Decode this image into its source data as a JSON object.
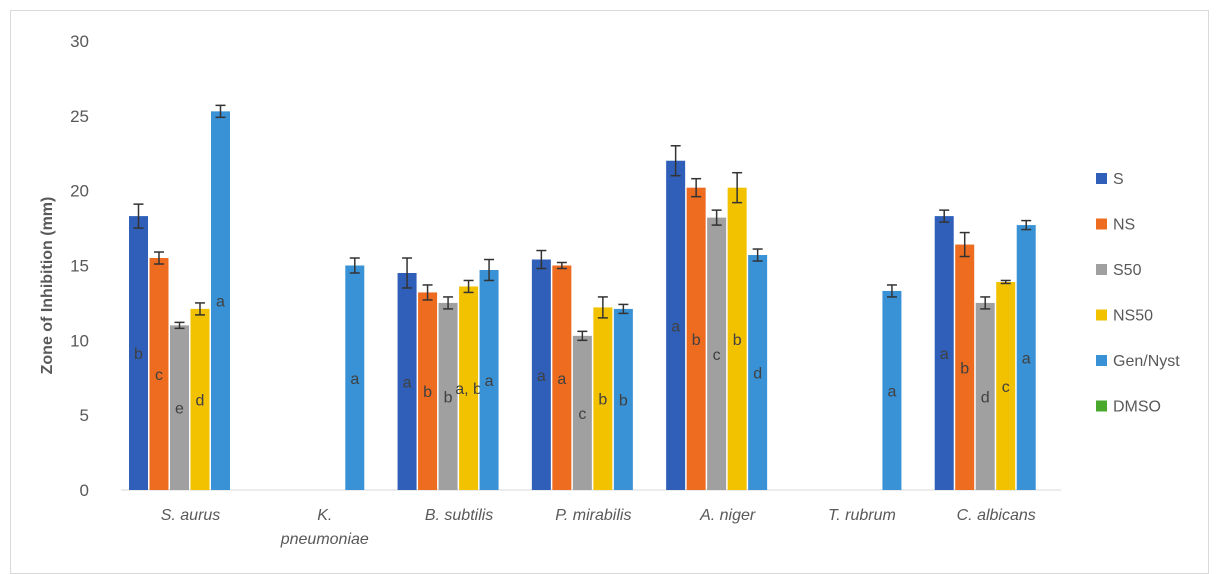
{
  "chart_data": {
    "type": "bar",
    "ylabel": "Zone of Inhibition (mm)",
    "xlabel": "",
    "ylim": [
      0,
      30
    ],
    "yticks": [
      0,
      5,
      10,
      15,
      20,
      25,
      30
    ],
    "grid": false,
    "legend_position": "right",
    "categories": [
      [
        "S. aurus"
      ],
      [
        "K.",
        "pneumoniae"
      ],
      [
        "B. subtilis"
      ],
      [
        "P. mirabilis"
      ],
      [
        "A. niger"
      ],
      [
        "T. rubrum"
      ],
      [
        "C. albicans"
      ]
    ],
    "series": [
      {
        "name": "S",
        "color": "#2f5fb8",
        "values": [
          18.3,
          null,
          14.5,
          15.4,
          22.0,
          null,
          18.3
        ],
        "errors": [
          0.8,
          null,
          1.0,
          0.6,
          1.0,
          null,
          0.4
        ],
        "letters": [
          "b",
          "",
          "a",
          "a",
          "a",
          "",
          "a"
        ]
      },
      {
        "name": "NS",
        "color": "#ed6c1f",
        "values": [
          15.5,
          null,
          13.2,
          15.0,
          20.2,
          null,
          16.4
        ],
        "errors": [
          0.4,
          null,
          0.5,
          0.2,
          0.6,
          null,
          0.8
        ],
        "letters": [
          "c",
          "",
          "b",
          "a",
          "b",
          "",
          "b"
        ]
      },
      {
        "name": "S50",
        "color": "#a0a0a0",
        "values": [
          11.0,
          null,
          12.5,
          10.3,
          18.2,
          null,
          12.5
        ],
        "errors": [
          0.2,
          null,
          0.4,
          0.3,
          0.5,
          null,
          0.4
        ],
        "letters": [
          "e",
          "",
          "b",
          "c",
          "c",
          "",
          "d"
        ]
      },
      {
        "name": "NS50",
        "color": "#f2c200",
        "values": [
          12.1,
          null,
          13.6,
          12.2,
          20.2,
          null,
          13.9
        ],
        "errors": [
          0.4,
          null,
          0.4,
          0.7,
          1.0,
          null,
          0.1
        ],
        "letters": [
          "d",
          "",
          "a, b",
          "b",
          "b",
          "",
          "c"
        ]
      },
      {
        "name": "Gen/Nyst",
        "color": "#3a92d6",
        "values": [
          25.3,
          15.0,
          14.7,
          12.1,
          15.7,
          13.3,
          17.7
        ],
        "errors": [
          0.4,
          0.5,
          0.7,
          0.3,
          0.4,
          0.4,
          0.3
        ],
        "letters": [
          "a",
          "a",
          "a",
          "b",
          "d",
          "a",
          "a"
        ]
      },
      {
        "name": "DMSO",
        "color": "#4aa82d",
        "values": [
          0,
          0,
          0,
          0,
          0,
          0,
          0
        ],
        "errors": [
          null,
          null,
          null,
          null,
          null,
          null,
          null
        ],
        "letters": [
          "",
          "",
          "",
          "",
          "",
          "",
          ""
        ]
      }
    ]
  }
}
